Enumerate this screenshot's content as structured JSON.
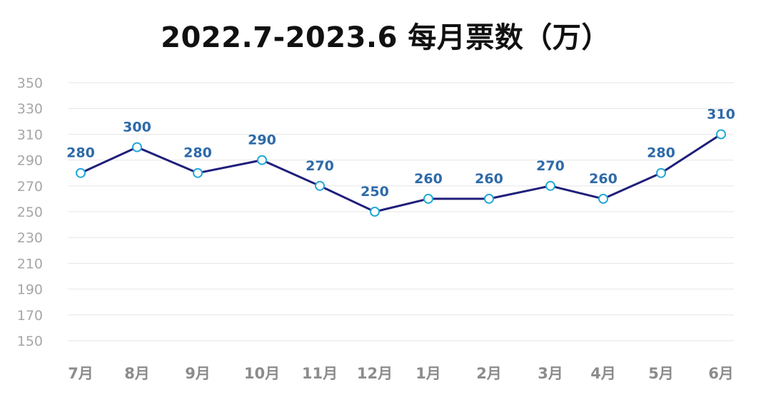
{
  "chart_data": {
    "type": "line",
    "title": "2022.7-2023.6 每月票数（万）",
    "xlabel": "",
    "ylabel": "",
    "categories": [
      "7月",
      "8月",
      "9月",
      "10月",
      "11月",
      "12月",
      "1月",
      "2月",
      "3月",
      "4月",
      "5月",
      "6月"
    ],
    "series": [
      {
        "values": [
          280,
          300,
          280,
          290,
          270,
          250,
          260,
          260,
          270,
          260,
          280,
          310
        ]
      }
    ],
    "ylim": [
      150,
      350
    ],
    "yticks": [
      350,
      330,
      310,
      290,
      270,
      250,
      230,
      210,
      190,
      170,
      150
    ],
    "grid": true,
    "legend": "none",
    "colors": {
      "line": "#1f1f7a",
      "marker_fill": "#ffffff",
      "marker_stroke": "#22a9d6",
      "data_label": "#2e6aa8",
      "grid": "#e6e6e6",
      "tick_text": "#a6a6a6",
      "category_text": "#8c8c8c"
    }
  }
}
